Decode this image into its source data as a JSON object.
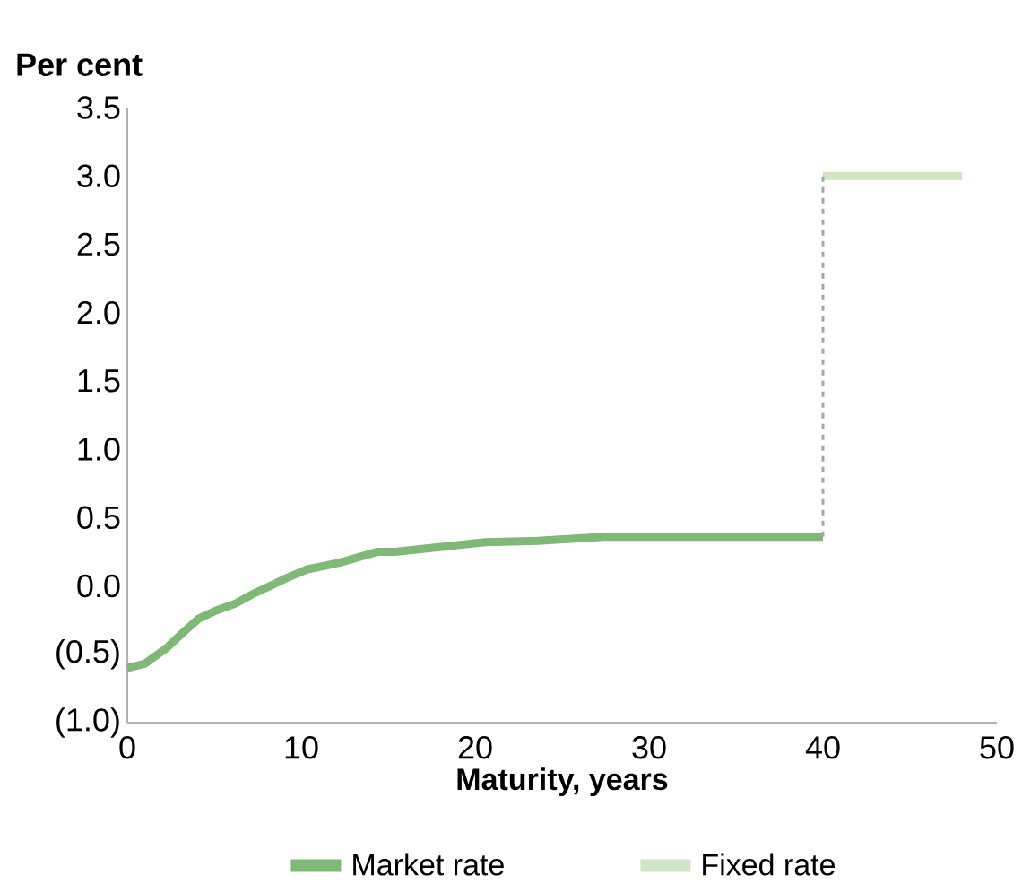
{
  "chart_data": {
    "type": "line",
    "ylabel": "Per cent",
    "xlabel": "Maturity, years",
    "xlim": [
      0,
      50
    ],
    "xticks": [
      0,
      10,
      20,
      30,
      40,
      50
    ],
    "ylim": [
      -1,
      3.5
    ],
    "yticks": [
      {
        "value": -1,
        "label": "(1.0)"
      },
      {
        "value": -0.5,
        "label": "(0.5)"
      },
      {
        "value": 0,
        "label": "0.0"
      },
      {
        "value": 0.5,
        "label": "0.5"
      },
      {
        "value": 1,
        "label": "1.0"
      },
      {
        "value": 1.5,
        "label": "1.5"
      },
      {
        "value": 2,
        "label": "2.0"
      },
      {
        "value": 2.5,
        "label": "2.5"
      },
      {
        "value": 3,
        "label": "3.0"
      },
      {
        "value": 3.5,
        "label": "3.5"
      }
    ],
    "series": [
      {
        "name": "Market rate",
        "color": "#7fb877",
        "x": [
          0,
          1,
          2.2,
          3.3,
          4.1,
          5.1,
          6.2,
          7.2,
          8.2,
          9.2,
          10.3,
          12.2,
          14.4,
          15.4,
          20.6,
          23.6,
          27.4,
          40
        ],
        "values": [
          -0.6,
          -0.57,
          -0.46,
          -0.33,
          -0.24,
          -0.18,
          -0.13,
          -0.06,
          0.0,
          0.06,
          0.12,
          0.17,
          0.25,
          0.25,
          0.32,
          0.33,
          0.36,
          0.36
        ]
      },
      {
        "name": "Fixed rate",
        "color": "#cfe5c5",
        "x": [
          40,
          48
        ],
        "values": [
          3.0,
          3.0
        ]
      },
      {
        "type": "line",
        "color": "#a6a6a6",
        "line_style": "dashed",
        "x": [
          40,
          40
        ],
        "values": [
          0.36,
          3.0
        ]
      }
    ],
    "grid": false,
    "legend": "bottom",
    "marker": "none",
    "line_style": "solid"
  }
}
